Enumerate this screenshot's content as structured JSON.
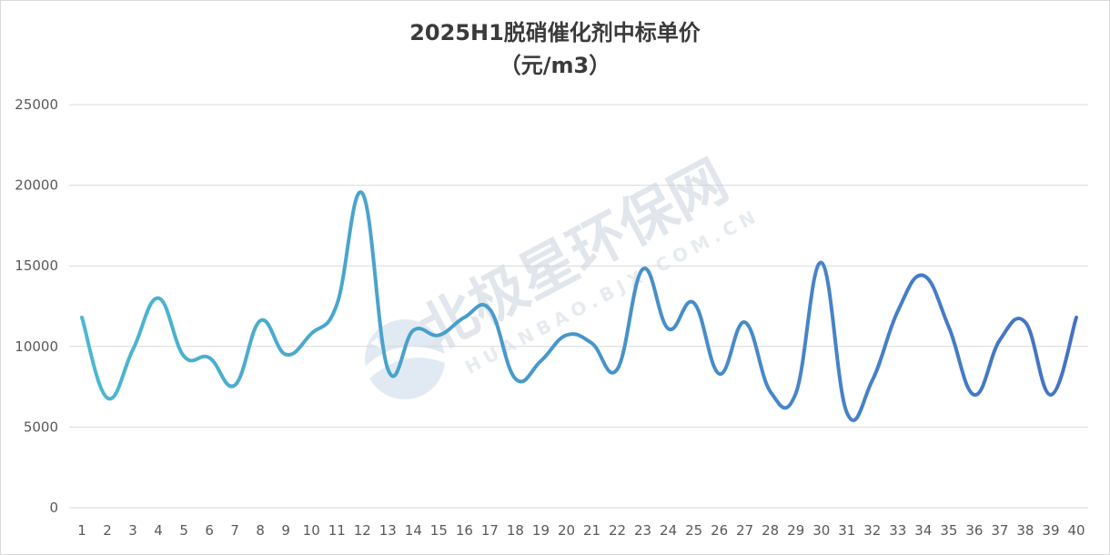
{
  "chart_data": {
    "type": "line",
    "title": "2025H1脱硝催化剂中标单价",
    "subtitle": "（元/m3）",
    "xlabel": "",
    "ylabel": "",
    "ylim": [
      0,
      25000
    ],
    "yticks": [
      0,
      5000,
      10000,
      15000,
      20000,
      25000
    ],
    "grid": true,
    "smooth": true,
    "line_color_start": "#4bb8d0",
    "line_color_end": "#4472c4",
    "x": [
      1,
      2,
      3,
      4,
      5,
      6,
      7,
      8,
      9,
      10,
      11,
      12,
      13,
      14,
      15,
      16,
      17,
      18,
      19,
      20,
      21,
      22,
      23,
      24,
      25,
      26,
      27,
      28,
      29,
      30,
      31,
      32,
      33,
      34,
      35,
      36,
      37,
      38,
      39,
      40
    ],
    "categories": [
      "1",
      "2",
      "3",
      "4",
      "5",
      "6",
      "7",
      "8",
      "9",
      "10",
      "11",
      "12",
      "13",
      "14",
      "15",
      "16",
      "17",
      "18",
      "19",
      "20",
      "21",
      "22",
      "23",
      "24",
      "25",
      "26",
      "27",
      "28",
      "29",
      "30",
      "31",
      "32",
      "33",
      "34",
      "35",
      "36",
      "37",
      "38",
      "39",
      "40"
    ],
    "series": [
      {
        "values": [
          11800,
          6800,
          9800,
          13000,
          9400,
          9300,
          7600,
          11600,
          9500,
          10800,
          12600,
          19500,
          8600,
          11000,
          10700,
          11800,
          12300,
          8000,
          9100,
          10700,
          10200,
          8600,
          14800,
          11100,
          12700,
          8300,
          11500,
          7200,
          7100,
          15200,
          5900,
          7900,
          12200,
          14400,
          11200,
          7000,
          10400,
          11500,
          7000,
          11800
        ]
      }
    ]
  },
  "watermark": {
    "text": "北极星环保网",
    "subtext": "HUANBAO.BJX.COM.CN"
  }
}
